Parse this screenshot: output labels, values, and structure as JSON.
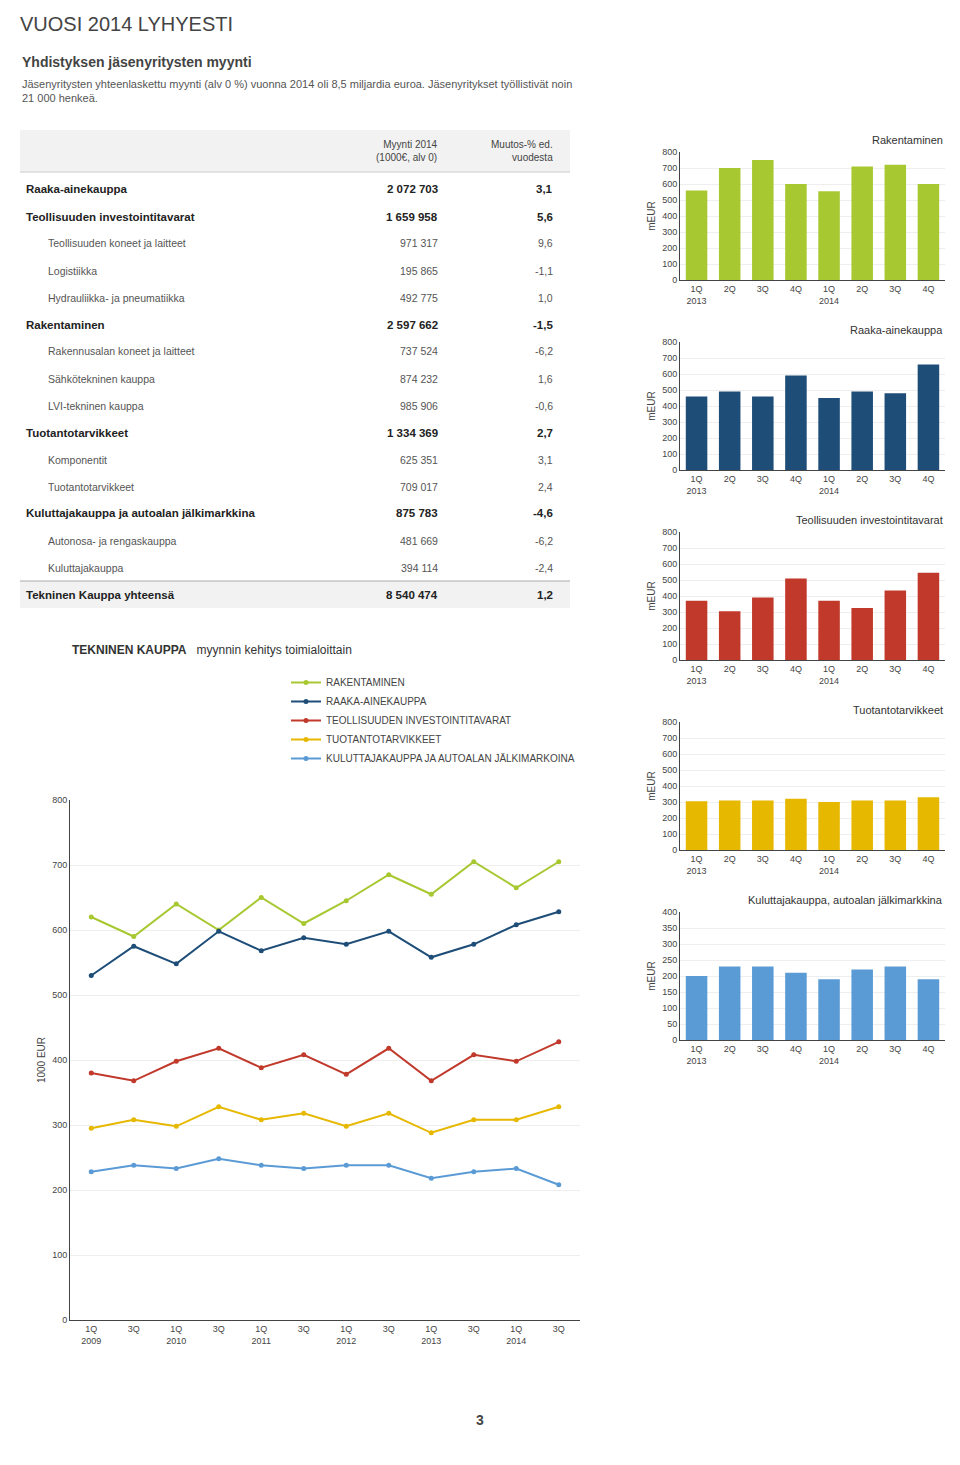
{
  "title": "VUOSI 2014 LYHYESTI",
  "page_number": 3,
  "chart_data": [
    {
      "type": "table",
      "title": "Yhdistyksen jäsenyritysten myynti",
      "subtitle": "Jäsenyritysten yhteenlaskettu myynti (alv 0 %) vuonna 2014 oli 8,5 miljardia euroa. Jäsenyritykset työllistivät noin\n21 000 henkeä.",
      "columns": [
        "Myynti 2014\n(1000€, alv 0)",
        "Muutos-% ed.\nvuodesta"
      ],
      "rows": [
        {
          "label": "Raaka-ainekauppa",
          "value": "2 072 703",
          "change": "3,1"
        },
        {
          "label": "Teollisuuden investointitavarat",
          "value": "1 659 958",
          "change": "5,6",
          "children": [
            {
              "label": "Teollisuuden koneet ja laitteet",
              "value": "971 317",
              "change": "9,6"
            },
            {
              "label": "Logistiikka",
              "value": "195 865",
              "change": "-1,1"
            },
            {
              "label": "Hydrauliikka- ja pneumatiikka",
              "value": "492 775",
              "change": "1,0"
            }
          ]
        },
        {
          "label": "Rakentaminen",
          "value": "2 597 662",
          "change": "-1,5",
          "children": [
            {
              "label": "Rakennusalan koneet ja laitteet",
              "value": "737 524",
              "change": "-6,2"
            },
            {
              "label": "Sähkötekninen kauppa",
              "value": "874 232",
              "change": "1,6"
            },
            {
              "label": "LVI-tekninen kauppa",
              "value": "985 906",
              "change": "-0,6"
            }
          ]
        },
        {
          "label": "Tuotantotarvikkeet",
          "value": "1 334 369",
          "change": "2,7",
          "children": [
            {
              "label": "Komponentit",
              "value": "625 351",
              "change": "3,1"
            },
            {
              "label": "Tuotantotarvikkeet",
              "value": "709 017",
              "change": "2,4"
            }
          ]
        },
        {
          "label": "Kuluttajakauppa ja autoalan jälkimarkkina",
          "value": "875 783",
          "change": "-4,6",
          "children": [
            {
              "label": "Autonosa- ja rengaskauppa",
              "value": "481 669",
              "change": "-6,2"
            },
            {
              "label": "Kuluttajakauppa",
              "value": "394 114",
              "change": "-2,4"
            }
          ]
        }
      ],
      "total": {
        "label": "Tekninen Kauppa yhteensä",
        "value": "8 540 474",
        "change": "1,2"
      }
    },
    {
      "type": "bar",
      "title": "Rakentaminen",
      "ylabel": "mEUR",
      "color": "#a8c832",
      "categories": [
        "1Q\n2013",
        "2Q",
        "3Q",
        "4Q",
        "1Q\n2014",
        "2Q",
        "3Q",
        "4Q"
      ],
      "values": [
        560,
        700,
        750,
        600,
        555,
        710,
        720,
        600
      ],
      "ylim": [
        0,
        800
      ],
      "yticks": [
        0,
        100,
        200,
        300,
        400,
        500,
        600,
        700,
        800
      ],
      "grid": true
    },
    {
      "type": "bar",
      "title": "Raaka-ainekauppa",
      "ylabel": "mEUR",
      "color": "#1e4d78",
      "categories": [
        "1Q\n2013",
        "2Q",
        "3Q",
        "4Q",
        "1Q\n2014",
        "2Q",
        "3Q",
        "4Q"
      ],
      "values": [
        460,
        490,
        460,
        590,
        450,
        490,
        480,
        660
      ],
      "ylim": [
        0,
        800
      ],
      "yticks": [
        0,
        100,
        200,
        300,
        400,
        500,
        600,
        700,
        800
      ],
      "grid": true
    },
    {
      "type": "bar",
      "title": "Teollisuuden investointitavarat",
      "ylabel": "mEUR",
      "color": "#c0392b",
      "categories": [
        "1Q\n2013",
        "2Q",
        "3Q",
        "4Q",
        "1Q\n2014",
        "2Q",
        "3Q",
        "4Q"
      ],
      "values": [
        370,
        305,
        390,
        510,
        370,
        325,
        435,
        545
      ],
      "ylim": [
        0,
        800
      ],
      "yticks": [
        0,
        100,
        200,
        300,
        400,
        500,
        600,
        700,
        800
      ],
      "grid": true
    },
    {
      "type": "bar",
      "title": "Tuotantotarvikkeet",
      "ylabel": "mEUR",
      "color": "#e6b800",
      "categories": [
        "1Q\n2013",
        "2Q",
        "3Q",
        "4Q",
        "1Q\n2014",
        "2Q",
        "3Q",
        "4Q"
      ],
      "values": [
        305,
        310,
        310,
        320,
        300,
        310,
        310,
        330
      ],
      "ylim": [
        0,
        800
      ],
      "yticks": [
        0,
        100,
        200,
        300,
        400,
        500,
        600,
        700,
        800
      ],
      "grid": true
    },
    {
      "type": "bar",
      "title": "Kuluttajakauppa, autoalan jälkimarkkina",
      "ylabel": "mEUR",
      "color": "#5b9bd5",
      "categories": [
        "1Q\n2013",
        "2Q",
        "3Q",
        "4Q",
        "1Q\n2014",
        "2Q",
        "3Q",
        "4Q"
      ],
      "values": [
        200,
        230,
        230,
        210,
        190,
        220,
        230,
        190
      ],
      "ylim": [
        0,
        400
      ],
      "yticks": [
        0,
        50,
        100,
        150,
        200,
        250,
        300,
        350,
        400
      ],
      "grid": true
    },
    {
      "type": "line",
      "title": "TEKNINEN KAUPPA",
      "subtitle": "myynnin kehitys toimialoittain",
      "ylabel": "1000 EUR",
      "categories": [
        "1Q\n2009",
        "3Q",
        "1Q\n2010",
        "3Q",
        "1Q\n2011",
        "3Q",
        "1Q\n2012",
        "3Q",
        "1Q\n2013",
        "3Q",
        "1Q\n2014",
        "3Q"
      ],
      "series": [
        {
          "name": "RAKENTAMINEN",
          "color": "#a8c832",
          "marker": "circle",
          "values": [
            620,
            590,
            640,
            600,
            650,
            610,
            645,
            685,
            655,
            705,
            665,
            705
          ]
        },
        {
          "name": "RAAKA-AINEKAUPPA",
          "color": "#1e4d78",
          "marker": "circle",
          "values": [
            530,
            575,
            548,
            598,
            568,
            588,
            578,
            598,
            558,
            578,
            608,
            628
          ]
        },
        {
          "name": "TEOLLISUUDEN INVESTOINTITAVARAT",
          "color": "#c0392b",
          "marker": "circle",
          "values": [
            380,
            368,
            398,
            418,
            388,
            408,
            378,
            418,
            368,
            408,
            398,
            428
          ]
        },
        {
          "name": "TUOTANTOTARVIKKEET",
          "color": "#e6b800",
          "marker": "circle",
          "values": [
            295,
            308,
            298,
            328,
            308,
            318,
            298,
            318,
            288,
            308,
            308,
            328
          ]
        },
        {
          "name": "KULUTTAJAKAUPPA JA AUTOALAN JÄLKIMARKOINA",
          "color": "#5b9bd5",
          "marker": "circle",
          "values": [
            228,
            238,
            233,
            248,
            238,
            233,
            238,
            238,
            218,
            228,
            233,
            208
          ]
        }
      ],
      "ylim": [
        0,
        800
      ],
      "yticks": [
        0,
        100,
        200,
        300,
        400,
        500,
        600,
        700,
        800
      ],
      "grid": true,
      "legend": "upper right"
    }
  ]
}
